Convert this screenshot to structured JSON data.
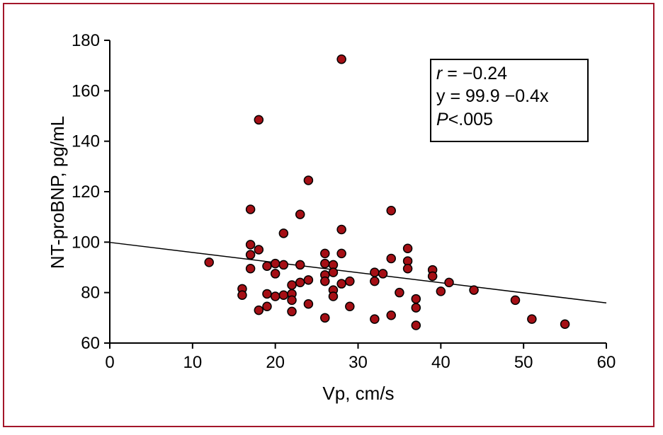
{
  "chart_data": {
    "type": "scatter",
    "title": "",
    "xlabel": "Vp, cm/s",
    "ylabel": "NT-proBNP, pg/mL",
    "xlim": [
      0,
      60
    ],
    "ylim": [
      60,
      180
    ],
    "xticks": [
      "0",
      "10",
      "20",
      "30",
      "40",
      "50",
      "60"
    ],
    "yticks": [
      "60",
      "80",
      "100",
      "120",
      "140",
      "160",
      "180"
    ],
    "grid": false,
    "marker_color": "#a50f15",
    "points": [
      {
        "x": 12,
        "y": 92
      },
      {
        "x": 16,
        "y": 81.5
      },
      {
        "x": 16,
        "y": 79
      },
      {
        "x": 17,
        "y": 113
      },
      {
        "x": 17,
        "y": 99
      },
      {
        "x": 17,
        "y": 95
      },
      {
        "x": 17,
        "y": 89.5
      },
      {
        "x": 18,
        "y": 148.5
      },
      {
        "x": 18,
        "y": 97
      },
      {
        "x": 18,
        "y": 73
      },
      {
        "x": 19,
        "y": 90.5
      },
      {
        "x": 19,
        "y": 79.5
      },
      {
        "x": 19,
        "y": 74.5
      },
      {
        "x": 20,
        "y": 91.5
      },
      {
        "x": 20,
        "y": 87.5
      },
      {
        "x": 20,
        "y": 78.5
      },
      {
        "x": 21,
        "y": 103.5
      },
      {
        "x": 21,
        "y": 91
      },
      {
        "x": 21,
        "y": 79
      },
      {
        "x": 22,
        "y": 83
      },
      {
        "x": 22,
        "y": 79.5
      },
      {
        "x": 22,
        "y": 77
      },
      {
        "x": 22,
        "y": 72.5
      },
      {
        "x": 23,
        "y": 111
      },
      {
        "x": 23,
        "y": 91
      },
      {
        "x": 23,
        "y": 84
      },
      {
        "x": 24,
        "y": 124.5
      },
      {
        "x": 24,
        "y": 85
      },
      {
        "x": 24,
        "y": 75.5
      },
      {
        "x": 26,
        "y": 95.5
      },
      {
        "x": 26,
        "y": 91.5
      },
      {
        "x": 26,
        "y": 87
      },
      {
        "x": 26,
        "y": 84.5
      },
      {
        "x": 26,
        "y": 70
      },
      {
        "x": 27,
        "y": 91
      },
      {
        "x": 27,
        "y": 88
      },
      {
        "x": 27,
        "y": 81
      },
      {
        "x": 27,
        "y": 78.5
      },
      {
        "x": 28,
        "y": 172.5
      },
      {
        "x": 28,
        "y": 105
      },
      {
        "x": 28,
        "y": 95.5
      },
      {
        "x": 28,
        "y": 83.5
      },
      {
        "x": 29,
        "y": 84.5
      },
      {
        "x": 29,
        "y": 74.5
      },
      {
        "x": 32,
        "y": 88
      },
      {
        "x": 32,
        "y": 84.5
      },
      {
        "x": 32,
        "y": 69.5
      },
      {
        "x": 33,
        "y": 87.5
      },
      {
        "x": 34,
        "y": 112.5
      },
      {
        "x": 34,
        "y": 93.5
      },
      {
        "x": 34,
        "y": 71
      },
      {
        "x": 35,
        "y": 80
      },
      {
        "x": 36,
        "y": 97.5
      },
      {
        "x": 36,
        "y": 92.5
      },
      {
        "x": 36,
        "y": 89.5
      },
      {
        "x": 37,
        "y": 77.5
      },
      {
        "x": 37,
        "y": 74
      },
      {
        "x": 37,
        "y": 67
      },
      {
        "x": 39,
        "y": 89
      },
      {
        "x": 39,
        "y": 86.5
      },
      {
        "x": 40,
        "y": 80.5
      },
      {
        "x": 41,
        "y": 84
      },
      {
        "x": 44,
        "y": 81
      },
      {
        "x": 49,
        "y": 77
      },
      {
        "x": 51,
        "y": 69.5
      },
      {
        "x": 55,
        "y": 67.5
      }
    ],
    "regression": {
      "intercept": 99.9,
      "slope": -0.4
    },
    "annotations": {
      "r_symbol": "r",
      "r_value": " = −0.24",
      "equation": "y = 99.9 −0.4x",
      "p_symbol": "P",
      "p_value": "<.005"
    }
  }
}
